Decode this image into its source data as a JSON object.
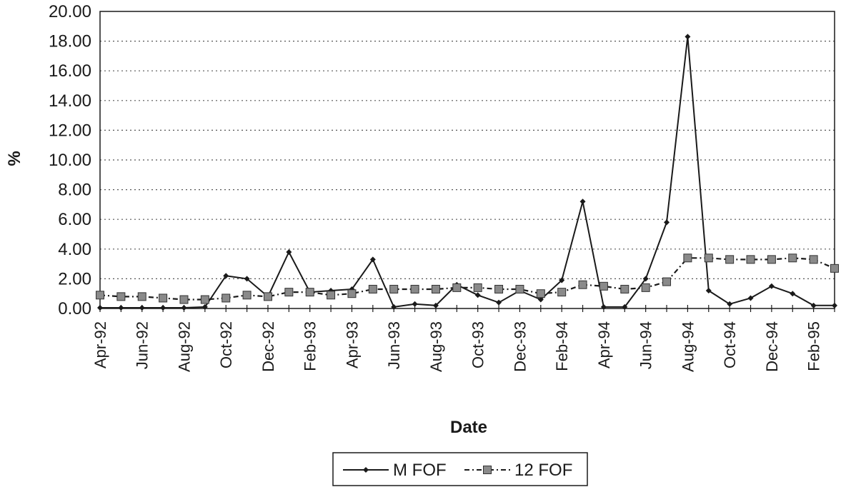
{
  "chart_data": {
    "type": "line",
    "xlabel": "Date",
    "ylabel": "%",
    "ylim": [
      0,
      20
    ],
    "yticks": [
      "0.00",
      "2.00",
      "4.00",
      "6.00",
      "8.00",
      "10.00",
      "12.00",
      "14.00",
      "16.00",
      "18.00",
      "20.00"
    ],
    "x": [
      "Apr-92",
      "May-92",
      "Jun-92",
      "Jul-92",
      "Aug-92",
      "Sep-92",
      "Oct-92",
      "Nov-92",
      "Dec-92",
      "Jan-93",
      "Feb-93",
      "Mar-93",
      "Apr-93",
      "May-93",
      "Jun-93",
      "Jul-93",
      "Aug-93",
      "Sep-93",
      "Oct-93",
      "Nov-93",
      "Dec-93",
      "Jan-94",
      "Feb-94",
      "Mar-94",
      "Apr-94",
      "May-94",
      "Jun-94",
      "Jul-94",
      "Aug-94",
      "Sep-94",
      "Oct-94",
      "Nov-94",
      "Dec-94",
      "Jan-95",
      "Feb-95",
      "Mar-95"
    ],
    "x_tick_labels": [
      "Apr-92",
      "Jun-92",
      "Aug-92",
      "Oct-92",
      "Dec-92",
      "Feb-93",
      "Apr-93",
      "Jun-93",
      "Aug-93",
      "Oct-93",
      "Dec-93",
      "Feb-94",
      "Apr-94",
      "Jun-94",
      "Aug-94",
      "Oct-94",
      "Dec-94",
      "Feb-95"
    ],
    "grid": "horizontal dotted",
    "legend_position": "bottom-center",
    "series": [
      {
        "name": "M FOF",
        "style": "solid",
        "marker": "diamond",
        "color": "#1a1a1a",
        "values": [
          0.05,
          0.05,
          0.05,
          0.05,
          0.05,
          0.1,
          2.2,
          2.0,
          0.8,
          3.8,
          1.1,
          1.2,
          1.3,
          3.3,
          0.1,
          0.3,
          0.2,
          1.6,
          0.9,
          0.4,
          1.2,
          0.6,
          1.9,
          7.2,
          0.1,
          0.1,
          2.0,
          5.8,
          18.3,
          1.2,
          0.3,
          0.7,
          1.5,
          1.0,
          0.2,
          0.2
        ]
      },
      {
        "name": "12 FOF",
        "style": "dash-dot",
        "marker": "square",
        "color": "#1a1a1a",
        "values": [
          0.9,
          0.8,
          0.8,
          0.7,
          0.6,
          0.6,
          0.7,
          0.9,
          0.8,
          1.1,
          1.1,
          0.9,
          1.0,
          1.3,
          1.3,
          1.3,
          1.3,
          1.4,
          1.4,
          1.3,
          1.3,
          1.0,
          1.1,
          1.6,
          1.5,
          1.3,
          1.4,
          1.8,
          3.4,
          3.4,
          3.3,
          3.3,
          3.3,
          3.4,
          3.3,
          2.7
        ]
      }
    ]
  }
}
